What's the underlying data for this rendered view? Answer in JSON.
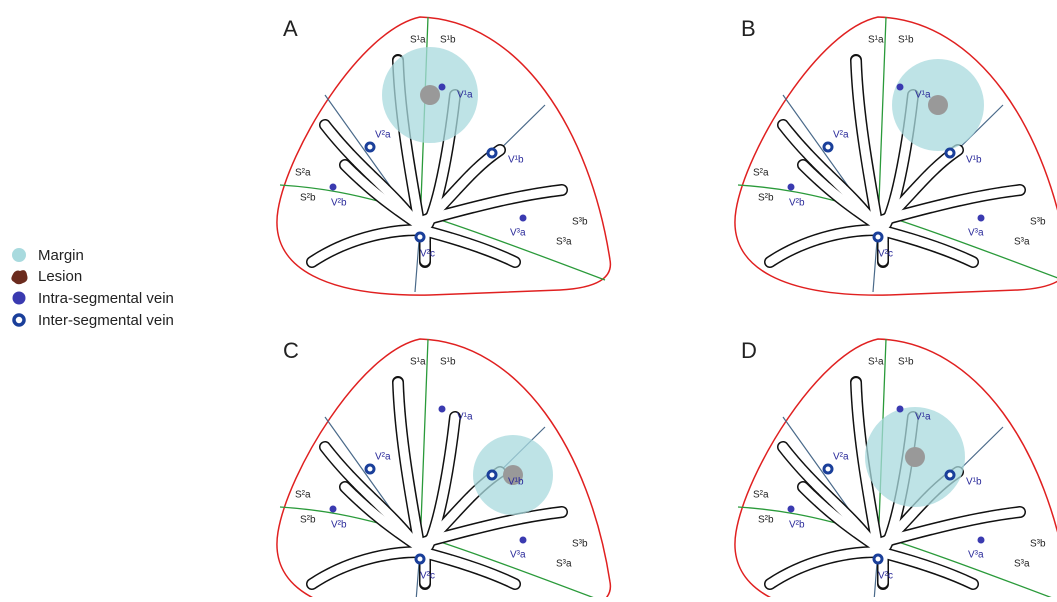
{
  "legend": [
    {
      "label": "Margin"
    },
    {
      "label": "Lesion"
    },
    {
      "label": "Intra-segmental vein"
    },
    {
      "label": "Inter-segmental vein"
    }
  ],
  "panels": [
    {
      "letter": "A",
      "labels": [
        "S¹a",
        "S¹b",
        "S²a",
        "S²b",
        "S³b",
        "S³a",
        "V¹a",
        "V¹b",
        "V²a",
        "V²b",
        "V²c",
        "V³a"
      ]
    },
    {
      "letter": "B",
      "labels": [
        "S¹a",
        "S¹b",
        "S²a",
        "S²b",
        "S³b",
        "S³a",
        "V¹a",
        "V¹b",
        "V²a",
        "V²b",
        "V²c",
        "V³a"
      ]
    },
    {
      "letter": "C",
      "labels": [
        "S¹a",
        "S¹b",
        "S²a",
        "S²b",
        "S³b",
        "S³a",
        "V¹a",
        "V¹b",
        "V²a",
        "V²b",
        "V²c",
        "V³a"
      ]
    },
    {
      "letter": "D",
      "labels": [
        "S¹a",
        "S¹b",
        "S²a",
        "S²b",
        "S³b",
        "S³a",
        "V¹a",
        "V¹b",
        "V²a",
        "V²b",
        "V²c",
        "V³a"
      ]
    }
  ]
}
